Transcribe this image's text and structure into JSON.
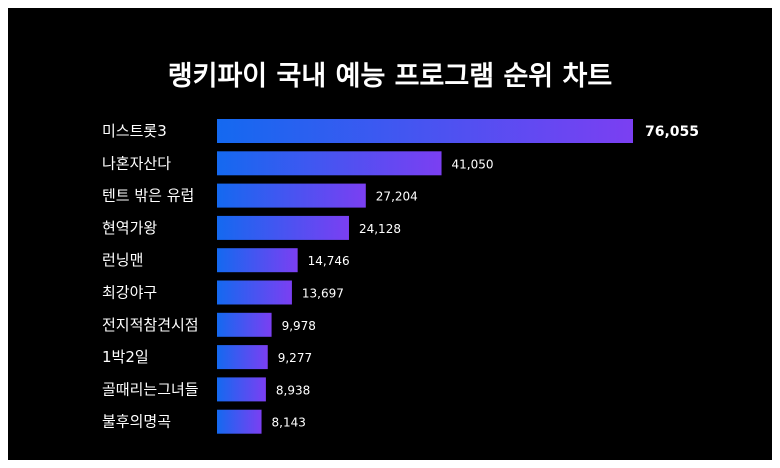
{
  "title": "랭키파이 국내 예능 프로그램 순위 차트",
  "colors": {
    "background": "#000000",
    "bar_start": "#1469f0",
    "bar_end": "#7b3ff2",
    "text": "#ffffff"
  },
  "chart_data": {
    "type": "bar",
    "orientation": "horizontal",
    "title": "랭키파이 국내 예능 프로그램 순위 차트",
    "categories": [
      "미스트롯3",
      "나혼자산다",
      "텐트 밖은 유럽",
      "현역가왕",
      "런닝맨",
      "최강야구",
      "전지적참견시점",
      "1박2일",
      "골때리는그녀들",
      "불후의명곡"
    ],
    "values": [
      76055,
      41050,
      27204,
      24128,
      14746,
      13697,
      9978,
      9277,
      8938,
      8143
    ],
    "value_labels": [
      "76,055",
      "41,050",
      "27,204",
      "24,128",
      "14,746",
      "13,697",
      "9,978",
      "9,277",
      "8,938",
      "8,143"
    ],
    "xlim": [
      0,
      76055
    ],
    "grid": false,
    "legend": "none"
  }
}
